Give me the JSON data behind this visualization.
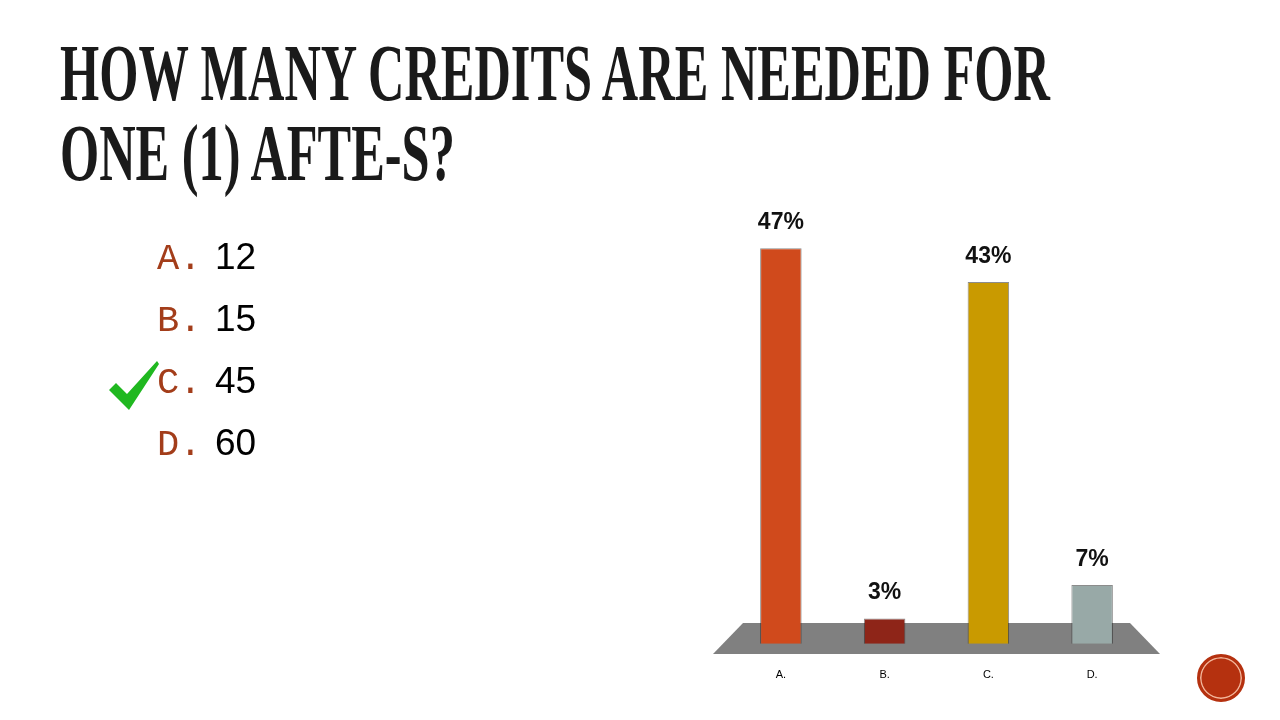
{
  "chart_data": {
    "type": "bar",
    "title": "HOW MANY CREDITS ARE NEEDED FOR ONE (1) AFTE-S?",
    "categories": [
      "A.",
      "B.",
      "C.",
      "D."
    ],
    "values": [
      47,
      3,
      43,
      7
    ],
    "colors": [
      "#d04a1c",
      "#8e2518",
      "#c99a00",
      "#98a9a7"
    ],
    "value_labels": [
      "47%",
      "3%",
      "43%",
      "7%"
    ],
    "annotations": [
      "A. 12",
      "B. 15",
      "C. 45",
      "D. 60"
    ]
  }
}
